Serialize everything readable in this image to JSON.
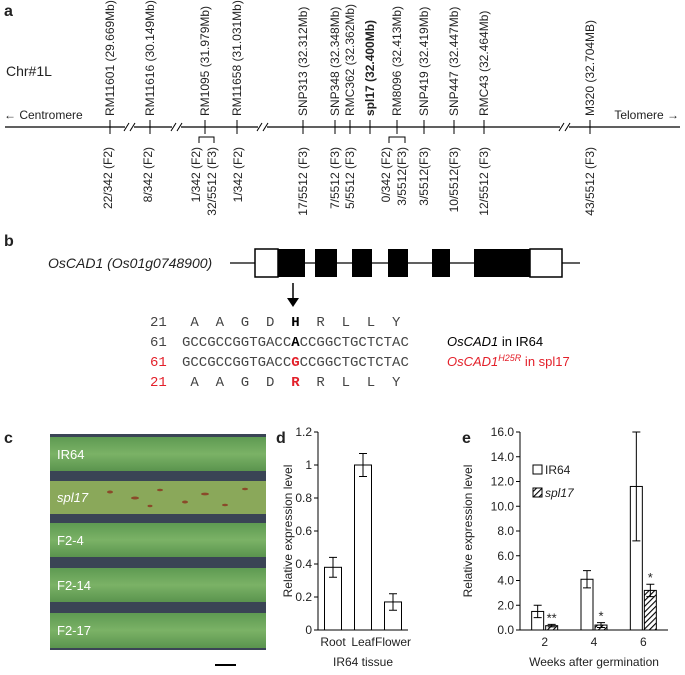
{
  "panel_a": {
    "label": "a",
    "chromosome": "Chr#1L",
    "left_end": "← Centromere",
    "right_end": "Telomere →",
    "markers": [
      "RM11601 (29.669Mb)",
      "RM11616 (30.149Mb)",
      "RM1095 (31.979Mb)",
      "RM11658 (31.031Mb)",
      "SNP313 (32.312Mb)",
      "SNP348 (32.348Mb)",
      "RMC362 (32.362Mb)",
      "spl17 (32.400Mb)",
      "RM8096 (32.413Mb)",
      "SNP419 (32.419Mb)",
      "SNP447 (32.447Mb)",
      "RMC43 (32.464Mb)",
      "M320 (32.704MB)"
    ],
    "recombinants": [
      "22/342 (F2)",
      "8/342 (F2)",
      "1/342 (F2)",
      "32/5512 (F3)",
      "1/342 (F2)",
      "17/5512 (F3)",
      "7/5512 (F3)",
      "5/5512 (F3)",
      "0/342 (F2)",
      "3/5512(F3)",
      "3/5512(F3)",
      "10/5512(F3)",
      "12/5512 (F3)",
      "43/5512 (F3)"
    ]
  },
  "panel_b": {
    "label": "b",
    "gene": "OsCAD1 (Os01g0748900)",
    "rows": [
      {
        "start": "21",
        "residues": [
          "A",
          "A",
          "G",
          "D",
          "H",
          "R",
          "L",
          "L",
          "Y"
        ]
      },
      {
        "start": "61",
        "bases": [
          "GCCGCCGGTGACC",
          "A",
          "CCGGCTGCTCTAC"
        ],
        "gene": "OsCAD1",
        "suffix": " in IR64"
      },
      {
        "start": "61",
        "bases": [
          "GCCGCCGGTGACC",
          "G",
          "CCGGCTGCTCTAC"
        ],
        "gene": "OsCAD1",
        "superscript": "H25R",
        "suffix": " in spl17",
        "color": "#e3202a"
      },
      {
        "start": "21",
        "residues": [
          "A",
          "A",
          "G",
          "D",
          "R",
          "R",
          "L",
          "L",
          "Y"
        ],
        "color": "#e3202a"
      }
    ]
  },
  "panel_c": {
    "label": "c",
    "rows": [
      "IR64",
      "spl17",
      "F2-4",
      "F2-14",
      "F2-17"
    ]
  },
  "chart_data": [
    {
      "type": "bar",
      "label": "d",
      "y_label": "Relative expression level",
      "x_label": "IR64 tissue",
      "categories": [
        "Root",
        "Leaf",
        "Flower"
      ],
      "values": [
        0.38,
        1.0,
        0.17
      ],
      "errors": [
        0.06,
        0.07,
        0.05
      ],
      "color": "#ffffff",
      "ylim": [
        0,
        1.2
      ],
      "yticks": [
        0,
        0.2,
        0.4,
        0.6,
        0.8,
        1,
        1.2
      ]
    },
    {
      "type": "bar",
      "label": "e",
      "y_label": "Relative expression level",
      "x_label": "Weeks after germination",
      "categories": [
        "2",
        "4",
        "6"
      ],
      "series": [
        {
          "name": "IR64",
          "color": "#ffffff",
          "values": [
            1.5,
            4.1,
            11.6
          ],
          "errors": [
            0.5,
            0.7,
            4.4
          ]
        },
        {
          "name": "spl17",
          "color": "#000000",
          "hatch": true,
          "values": [
            0.35,
            0.4,
            3.2
          ],
          "errors": [
            0.1,
            0.2,
            0.5
          ],
          "annotations": [
            "**",
            "*",
            "*"
          ]
        }
      ],
      "ylim": [
        0,
        16
      ],
      "yticks": [
        {
          "value": 0,
          "label": "0.0"
        },
        {
          "value": 2,
          "label": "2.0"
        },
        {
          "value": 4,
          "label": "4.0"
        },
        {
          "value": 6,
          "label": "6.0"
        },
        {
          "value": 8,
          "label": "8.0"
        },
        {
          "value": 10,
          "label": "10.0"
        },
        {
          "value": 12,
          "label": "12.0"
        },
        {
          "value": 14,
          "label": "14.0"
        },
        {
          "value": 16,
          "label": "16.0"
        }
      ]
    }
  ]
}
